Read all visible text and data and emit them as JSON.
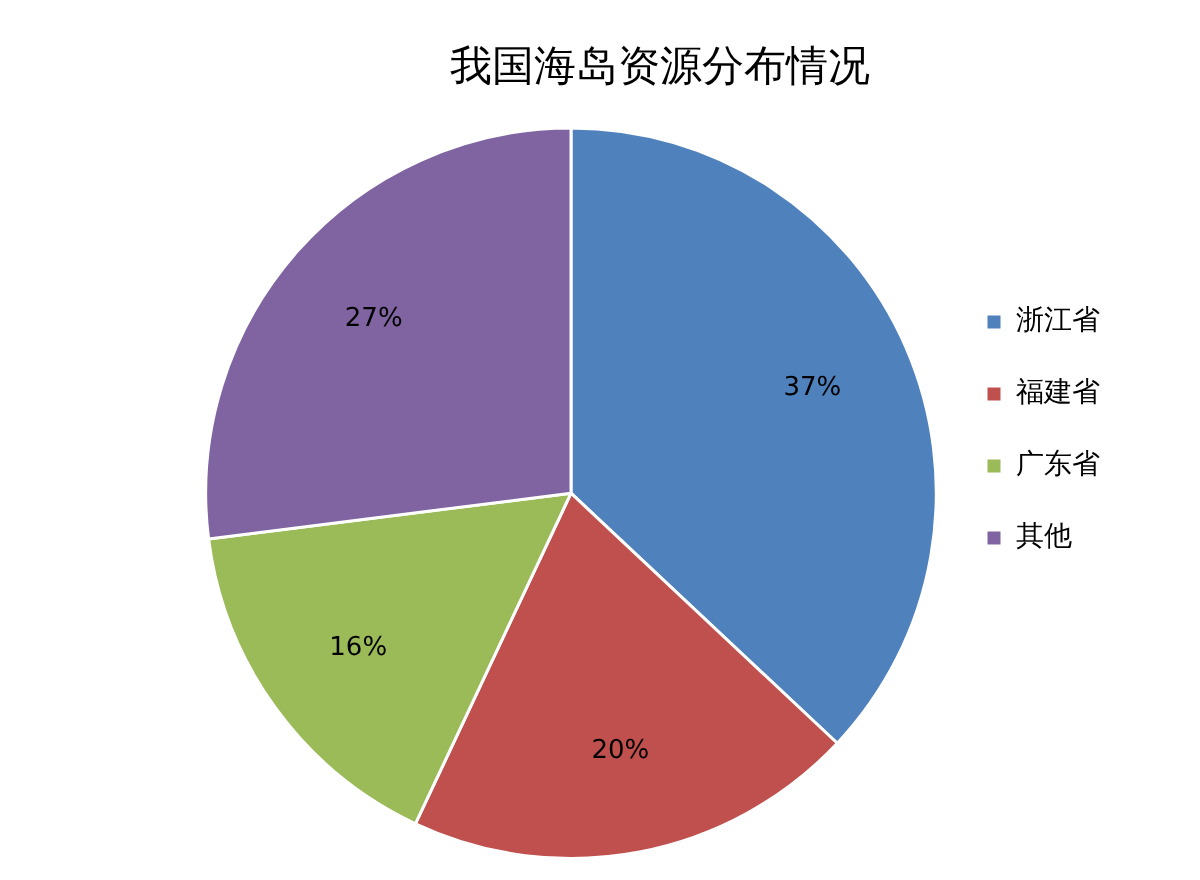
{
  "chart_data": {
    "type": "pie",
    "title": "我国海岛资源分布情况",
    "categories": [
      "浙江省",
      "福建省",
      "广东省",
      "其他"
    ],
    "values": [
      37,
      20,
      16,
      27
    ],
    "colors": [
      "#4f81bd",
      "#c0504d",
      "#9bbb59",
      "#8064a2"
    ],
    "value_labels": [
      "37%",
      "20%",
      "16%",
      "27%"
    ],
    "legend": "right"
  }
}
